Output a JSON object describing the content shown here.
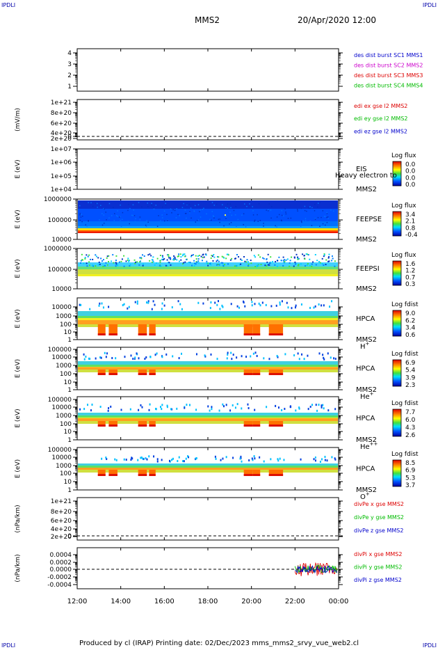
{
  "corners": {
    "tl": "IPDLI",
    "tr": "IPDLI",
    "bl": "IPDLI",
    "br": "IPDLI"
  },
  "header": {
    "mission": "MMS2",
    "datetime": "20/Apr/2020 12:00"
  },
  "footer": {
    "text": "Produced by cl (IRAP)   Printing date: 02/Dec/2023   mms_mms2_srvy_vue_web2.cl"
  },
  "chart_data": [
    {
      "type": "line",
      "panel": "des-dist",
      "yticks": [
        "4",
        "3",
        "2",
        "1"
      ],
      "ylim": [
        0.5,
        4.5
      ],
      "series": [
        {
          "name": "des dist burst SC1 MMS1",
          "color": "#0000cc",
          "values": []
        },
        {
          "name": "des dist burst SC2 MMS2",
          "color": "#cc00cc",
          "values": []
        },
        {
          "name": "des dist burst SC3 MMS3",
          "color": "#dd0000",
          "values": []
        },
        {
          "name": "des dist burst SC4 MMS4",
          "color": "#00bb00",
          "values": []
        }
      ]
    },
    {
      "type": "line",
      "panel": "edi",
      "ylabel": "(mV/m)",
      "yticks": [
        "1e+21",
        "8e+20",
        "6e+20",
        "4e+20",
        "2e+20",
        "0"
      ],
      "series": [
        {
          "name": "edi ex gse l2 MMS2",
          "color": "#dd0000",
          "values": []
        },
        {
          "name": "edi ey gse l2 MMS2",
          "color": "#00bb00",
          "values": []
        },
        {
          "name": "edi ez gse l2 MMS2",
          "color": "#0000cc",
          "values": []
        }
      ]
    },
    {
      "type": "heatmap",
      "panel": "eis",
      "ylabel": "E (eV)",
      "yticks": [
        "1e+07",
        "1e+06",
        "1e+05",
        "1e+04"
      ],
      "instrument": "EIS",
      "spacecraft": "MMS2",
      "overlay": "Heavy electron to",
      "colorbar_title": "Log flux",
      "colorbar_ticks": [
        "0.0",
        "0.0",
        "0.0",
        "0.0"
      ]
    },
    {
      "type": "heatmap",
      "panel": "feeps-e",
      "ylabel": "E (eV)",
      "yticks": [
        "1000000",
        "100000",
        "10000"
      ],
      "instrument": "FEEPSE",
      "spacecraft": "MMS2",
      "colorbar_title": "Log flux",
      "colorbar_ticks": [
        "3.4",
        "2.1",
        "0.8",
        "-0.4"
      ]
    },
    {
      "type": "heatmap",
      "panel": "feeps-i",
      "ylabel": "E (eV)",
      "yticks": [
        "1000000",
        "100000",
        "10000"
      ],
      "instrument": "FEEPSI",
      "spacecraft": "MMS2",
      "colorbar_title": "Log flux",
      "colorbar_ticks": [
        "1.6",
        "1.2",
        "0.7",
        "0.3"
      ]
    },
    {
      "type": "heatmap",
      "panel": "hpca-h",
      "ylabel": "E (eV)",
      "yticks": [
        "10000",
        "1000",
        "100",
        "10",
        "1"
      ],
      "instrument": "HPCA",
      "spacecraft": "MMS2",
      "species": "H",
      "charge": "+",
      "colorbar_title": "Log fdist",
      "colorbar_ticks": [
        "9.0",
        "6.2",
        "3.4",
        "0.6"
      ]
    },
    {
      "type": "heatmap",
      "panel": "hpca-he",
      "ylabel": "E (eV)",
      "yticks": [
        "100000",
        "10000",
        "1000",
        "100",
        "10",
        "1"
      ],
      "instrument": "HPCA",
      "spacecraft": "MMS2",
      "species": "He",
      "charge": "+",
      "colorbar_title": "Log fdist",
      "colorbar_ticks": [
        "6.9",
        "5.4",
        "3.9",
        "2.3"
      ]
    },
    {
      "type": "heatmap",
      "panel": "hpca-he2",
      "ylabel": "E (eV)",
      "yticks": [
        "100000",
        "10000",
        "1000",
        "100",
        "10",
        "1"
      ],
      "instrument": "HPCA",
      "spacecraft": "MMS2",
      "species": "He",
      "charge": "++",
      "colorbar_title": "Log fdist",
      "colorbar_ticks": [
        "7.7",
        "6.0",
        "4.3",
        "2.6"
      ]
    },
    {
      "type": "heatmap",
      "panel": "hpca-o",
      "ylabel": "E (eV)",
      "yticks": [
        "100000",
        "10000",
        "1000",
        "100",
        "10",
        "1"
      ],
      "instrument": "HPCA",
      "spacecraft": "MMS2",
      "species": "O",
      "charge": "+",
      "colorbar_title": "Log fdist",
      "colorbar_ticks": [
        "8.5",
        "6.9",
        "5.3",
        "3.7"
      ]
    },
    {
      "type": "line",
      "panel": "divpe",
      "ylabel": "(nPa/km)",
      "yticks": [
        "1e+21",
        "8e+20",
        "6e+20",
        "4e+20",
        "2e+20",
        "0"
      ],
      "series": [
        {
          "name": "divPe x gse MMS2",
          "color": "#dd0000",
          "values": []
        },
        {
          "name": "divPe y gse MMS2",
          "color": "#00bb00",
          "values": []
        },
        {
          "name": "divPe z gse MMS2",
          "color": "#0000cc",
          "values": []
        }
      ]
    },
    {
      "type": "line",
      "panel": "divpi",
      "ylabel": "(nPa/km)",
      "yticks": [
        "0.0004",
        "0.0002",
        "0.0000",
        "-0.0002",
        "-0.0004"
      ],
      "ylim": [
        -0.0005,
        0.0005
      ],
      "data_window": [
        "22:00",
        "00:00"
      ],
      "series": [
        {
          "name": "divPi x gse MMS2",
          "color": "#dd0000"
        },
        {
          "name": "divPi y gse MMS2",
          "color": "#00bb00"
        },
        {
          "name": "divPi z gse MMS2",
          "color": "#0000cc"
        }
      ]
    }
  ],
  "time_axis": {
    "ticks": [
      "12:00",
      "14:00",
      "16:00",
      "18:00",
      "20:00",
      "22:00",
      "00:00"
    ]
  }
}
